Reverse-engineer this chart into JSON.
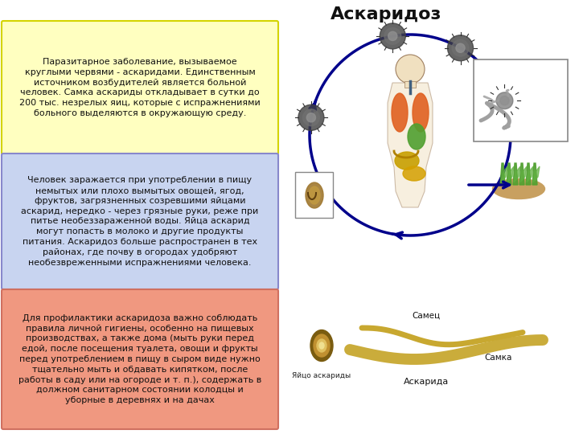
{
  "title": "Аскаридоз",
  "title_fontsize": 16,
  "bg_color": "#ffffff",
  "box1_text": "Паразитарное заболевание, вызываемое\nкруглыми червями - аскаридами. Единственным\nисточником возбудителей является больной\nчеловек. Самка аскариды откладывает в сутки до\n200 тыс. незрелых яиц, которые с испражнениями\nбольного выделяются в окружающую среду.",
  "box1_bg": "#ffffc0",
  "box1_border": "#d4d400",
  "box2_text": "Человек заражается при употреблении в пищу\nнемытых или плохо вымытых овощей, ягод,\nфруктов, загрязненных созревшими яйцами\nаскарид, нередко - через грязные руки, реже при\nпитье необеззараженной воды. Яйца аскарид\nмогут попасть в молоко и другие продукты\nпитания. Аскаридоз больше распространен в тех\nрайонах, где почву в огородах удобряют\nнеобезвреженными испражнениями человека.",
  "box2_bg": "#c8d4f0",
  "box2_border": "#8888cc",
  "box3_text": "Для профилактики аскаридоза важно соблюдать\nправила личной гигиены, особенно на пищевых\nпроизводствах, а также дома (мыть руки перед\nедой, после посещения туалета, овощи и фрукты\nперед употреблением в пищу в сыром виде нужно\nтщательно мыть и обдавать кипятком, после\nработы в саду или на огороде и т. п.), содержать в\nдолжном санитарном состоянии колодцы и\nуборные в деревнях и на дачах",
  "box3_bg": "#f09880",
  "box3_border": "#d07060",
  "text_fontsize": 8.0,
  "text_color": "#111111",
  "arrow_color": "#00008B",
  "body_skin": "#f0e0c0",
  "lung_color": "#e06020",
  "stomach_color": "#50a030",
  "intestine_color": "#c8a000",
  "egg_outer": "#7a5c10",
  "egg_inner": "#c8a040",
  "egg_center": "#e8c060",
  "worm_color": "#c8a830",
  "cycle_egg_color": "#404040"
}
